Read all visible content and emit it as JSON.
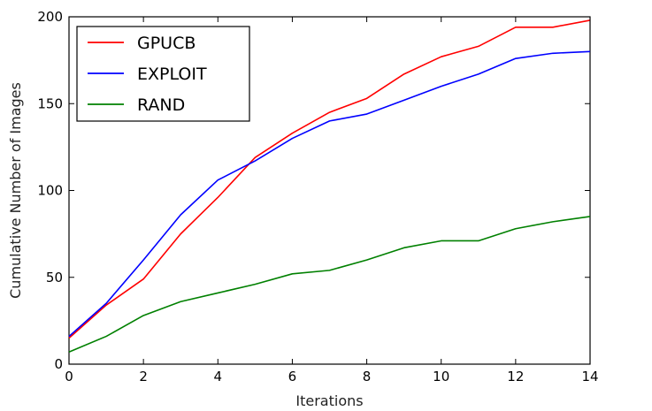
{
  "chart_data": {
    "type": "line",
    "xlabel": "Iterations",
    "ylabel": "Cumulative Number of Images",
    "xlim": [
      0,
      14
    ],
    "ylim": [
      0,
      200
    ],
    "x_ticks": [
      0,
      2,
      4,
      6,
      8,
      10,
      12,
      14
    ],
    "y_ticks": [
      0,
      50,
      100,
      150,
      200
    ],
    "grid": false,
    "legend_position": "top-left",
    "x": [
      0,
      1,
      2,
      3,
      4,
      5,
      6,
      7,
      8,
      9,
      10,
      11,
      12,
      13,
      14
    ],
    "series": [
      {
        "name": "GPUCB",
        "color": "#ff0000",
        "values": [
          15,
          34,
          49,
          75,
          96,
          119,
          133,
          145,
          153,
          167,
          177,
          183,
          194,
          194,
          198
        ]
      },
      {
        "name": "EXPLOIT",
        "color": "#0000ff",
        "values": [
          16,
          35,
          60,
          86,
          106,
          117,
          130,
          140,
          144,
          152,
          160,
          167,
          176,
          179,
          180
        ]
      },
      {
        "name": "RAND",
        "color": "#008000",
        "values": [
          7,
          16,
          28,
          36,
          41,
          46,
          52,
          54,
          60,
          67,
          71,
          71,
          78,
          82,
          85
        ]
      }
    ]
  }
}
